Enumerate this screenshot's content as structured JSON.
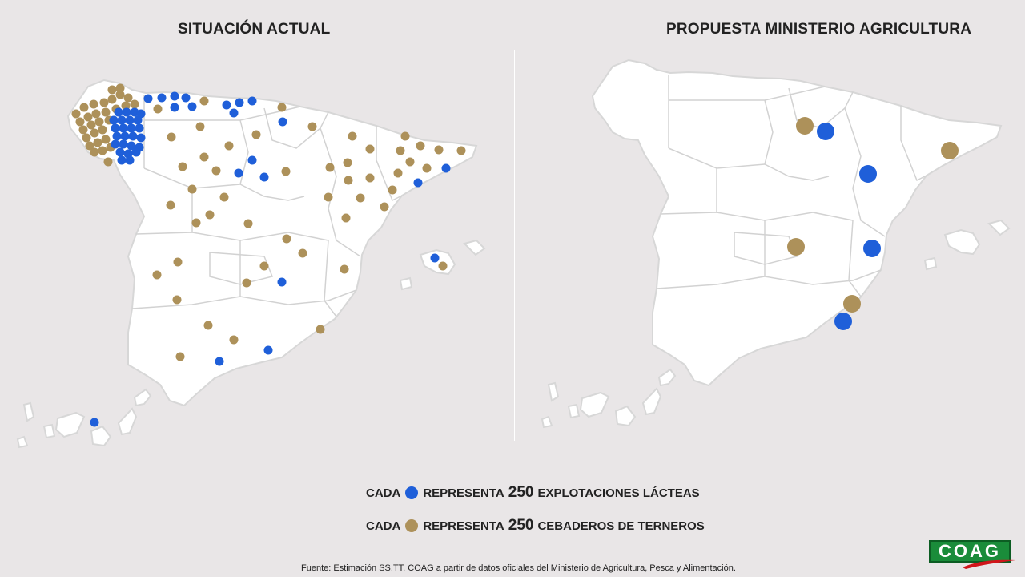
{
  "titles": {
    "left": "SITUACIÓN ACTUAL",
    "right": "PROPUESTA MINISTERIO AGRICULTURA"
  },
  "colors": {
    "background": "#e9e6e7",
    "land": "#ffffff",
    "border": "#d2d2d2",
    "dairy": "#1f5fd9",
    "calf": "#ad915a"
  },
  "legend": [
    {
      "pre": "CADA",
      "mid": "REPRESENTA",
      "number": "250",
      "post": "EXPLOTACIONES LÁCTEAS",
      "color_key": "dairy"
    },
    {
      "pre": "CADA",
      "mid": "REPRESENTA",
      "number": "250",
      "post": "CEBADEROS DE TERNEROS",
      "color_key": "calf"
    }
  ],
  "source": "Fuente: Estimación SS.TT. COAG a partir de datos oficiales del Ministerio de Agricultura, Pesca y Alimentación.",
  "logo": "COAG"
}
